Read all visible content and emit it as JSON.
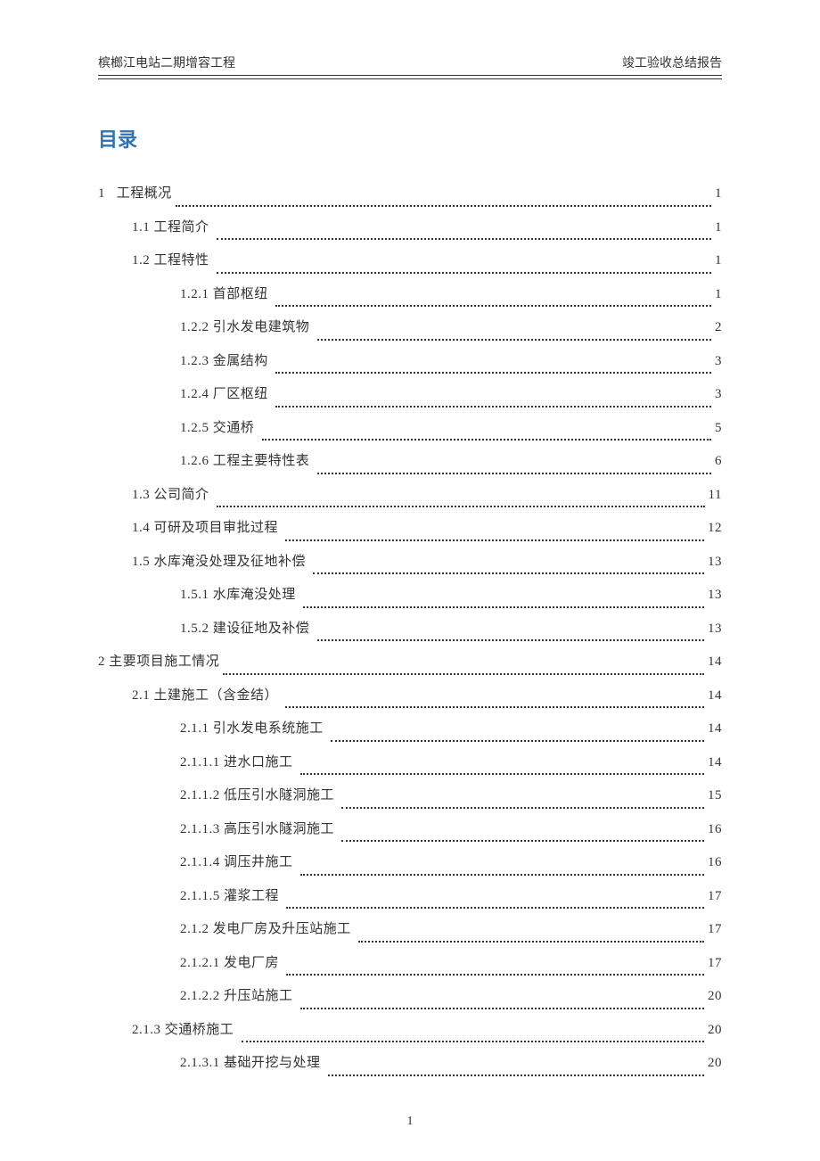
{
  "header": {
    "left": "槟榔江电站二期增容工程",
    "right": "竣工验收总结报告"
  },
  "toc_title": "目录",
  "toc_entries": [
    {
      "indent": 0,
      "label": "1   工程概况",
      "page": "1"
    },
    {
      "indent": 1,
      "label": "1.1 工程简介 ",
      "page": "1"
    },
    {
      "indent": 1,
      "label": "1.2 工程特性 ",
      "page": "1"
    },
    {
      "indent": 2,
      "label": "1.2.1 首部枢纽 ",
      "page": "1"
    },
    {
      "indent": 2,
      "label": "1.2.2 引水发电建筑物 ",
      "page": "2"
    },
    {
      "indent": 2,
      "label": "1.2.3 金属结构 ",
      "page": "3"
    },
    {
      "indent": 2,
      "label": "1.2.4 厂区枢纽 ",
      "page": "3"
    },
    {
      "indent": 2,
      "label": "1.2.5 交通桥 ",
      "page": "5"
    },
    {
      "indent": 2,
      "label": "1.2.6 工程主要特性表 ",
      "page": "6"
    },
    {
      "indent": 1,
      "label": "1.3 公司简介 ",
      "page": " 11"
    },
    {
      "indent": 1,
      "label": "1.4 可研及项目审批过程 ",
      "page": " 12"
    },
    {
      "indent": 1,
      "label": "1.5 水库淹没处理及征地补偿 ",
      "page": " 13"
    },
    {
      "indent": 2,
      "label": "1.5.1 水库淹没处理 ",
      "page": " 13"
    },
    {
      "indent": 2,
      "label": "1.5.2 建设征地及补偿 ",
      "page": " 13"
    },
    {
      "indent": 0,
      "label": "2 主要项目施工情况",
      "page": " 14"
    },
    {
      "indent": 1,
      "label": "2.1 土建施工（含金结） ",
      "page": " 14"
    },
    {
      "indent": 2,
      "label": "2.1.1 引水发电系统施工 ",
      "page": " 14"
    },
    {
      "indent": 2,
      "label": "2.1.1.1 进水口施工 ",
      "page": " 14"
    },
    {
      "indent": 2,
      "label": "2.1.1.2 低压引水隧洞施工 ",
      "page": " 15"
    },
    {
      "indent": 2,
      "label": "2.1.1.3 高压引水隧洞施工 ",
      "page": " 16"
    },
    {
      "indent": 2,
      "label": "2.1.1.4 调压井施工 ",
      "page": " 16"
    },
    {
      "indent": 2,
      "label": "2.1.1.5 灌浆工程 ",
      "page": " 17"
    },
    {
      "indent": 2,
      "label": "2.1.2 发电厂房及升压站施工 ",
      "page": " 17"
    },
    {
      "indent": 2,
      "label": "2.1.2.1 发电厂房 ",
      "page": " 17"
    },
    {
      "indent": 2,
      "label": "2.1.2.2 升压站施工 ",
      "page": " 20"
    },
    {
      "indent": 1,
      "label": "2.1.3 交通桥施工 ",
      "page": " 20"
    },
    {
      "indent": 2,
      "label": "2.1.3.1 基础开挖与处理 ",
      "page": " 20"
    }
  ],
  "page_number": "1",
  "colors": {
    "toc_title": "#2e74b5",
    "text": "#333333",
    "background": "#ffffff"
  }
}
